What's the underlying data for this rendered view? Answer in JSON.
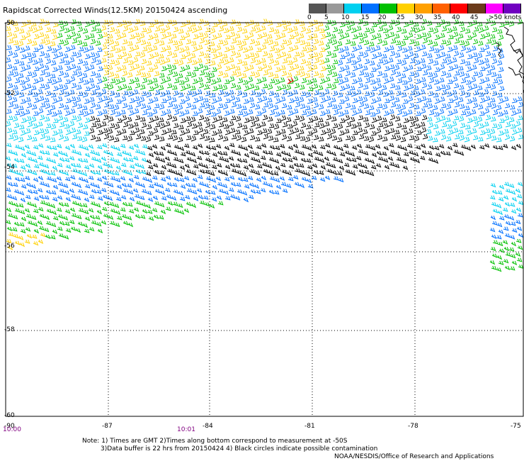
{
  "title": "Rapidscat Corrected Winds(12.5KM) 20150424 ascending",
  "scale": {
    "labels": [
      "0",
      "5",
      "10",
      "15",
      "20",
      "25",
      "30",
      "35",
      "40",
      "45",
      ">50 knots"
    ],
    "colors": [
      "#555555",
      "#999999",
      "#00d0f0",
      "#0070ff",
      "#00c000",
      "#ffd000",
      "#ffa000",
      "#ff6000",
      "#ff0000",
      "#6b3a1a",
      "#ff00ff",
      "#7000c0"
    ]
  },
  "axes": {
    "lat_labels": [
      "-50",
      "-52",
      "-54",
      "-56",
      "-58",
      "-60"
    ],
    "lon_labels": [
      "-90",
      "-87",
      "-84",
      "-81",
      "-78",
      "-75"
    ]
  },
  "times": [
    "10:00",
    "10:01"
  ],
  "notes": {
    "line1": "Note: 1) Times are GMT 2)Times along bottom correspond to measurement at -50S",
    "line2": "3)Data buffer is 22 hrs from 20150424 4) Black circles indicate possible contamination",
    "line3": "NOAA/NESDIS/Office of Research and Applications"
  }
}
